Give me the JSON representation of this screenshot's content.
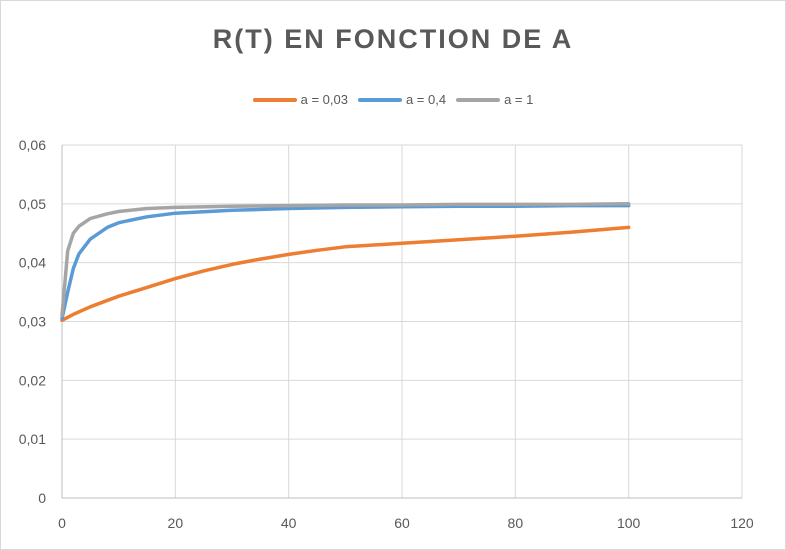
{
  "chart_data": {
    "type": "line",
    "title": "R(T) EN FONCTION DE A",
    "xlabel": "",
    "ylabel": "",
    "xlim": [
      0,
      120
    ],
    "ylim": [
      0,
      0.06
    ],
    "x_ticks": [
      "0",
      "20",
      "40",
      "60",
      "80",
      "100",
      "120"
    ],
    "y_ticks": [
      "0",
      "0,01",
      "0,02",
      "0,03",
      "0,04",
      "0,05",
      "0,06"
    ],
    "grid": true,
    "legend_position": "top",
    "series": [
      {
        "name": "a = 0,03",
        "color": "#ed7d31",
        "points": [
          [
            0,
            0.0302
          ],
          [
            2,
            0.0312
          ],
          [
            5,
            0.0325
          ],
          [
            10,
            0.0343
          ],
          [
            15,
            0.0358
          ],
          [
            20,
            0.0373
          ],
          [
            25,
            0.0386
          ],
          [
            30,
            0.0397
          ],
          [
            35,
            0.0406
          ],
          [
            40,
            0.0414
          ],
          [
            45,
            0.0421
          ],
          [
            50,
            0.0427
          ],
          [
            60,
            0.0433
          ],
          [
            70,
            0.0439
          ],
          [
            80,
            0.0445
          ],
          [
            90,
            0.0452
          ],
          [
            100,
            0.046
          ]
        ]
      },
      {
        "name": "a = 0,4",
        "color": "#5b9bd5",
        "points": [
          [
            0,
            0.0305
          ],
          [
            1,
            0.035
          ],
          [
            2,
            0.039
          ],
          [
            3,
            0.0415
          ],
          [
            5,
            0.044
          ],
          [
            8,
            0.046
          ],
          [
            10,
            0.0468
          ],
          [
            15,
            0.0478
          ],
          [
            20,
            0.0484
          ],
          [
            30,
            0.0489
          ],
          [
            40,
            0.0492
          ],
          [
            50,
            0.0494
          ],
          [
            60,
            0.0495
          ],
          [
            70,
            0.0496
          ],
          [
            80,
            0.0496
          ],
          [
            90,
            0.0497
          ],
          [
            100,
            0.0497
          ]
        ]
      },
      {
        "name": "a = 1",
        "color": "#a5a5a5",
        "points": [
          [
            0,
            0.031
          ],
          [
            1,
            0.042
          ],
          [
            2,
            0.045
          ],
          [
            3,
            0.0462
          ],
          [
            5,
            0.0475
          ],
          [
            8,
            0.0483
          ],
          [
            10,
            0.0487
          ],
          [
            15,
            0.0492
          ],
          [
            20,
            0.0494
          ],
          [
            30,
            0.0496
          ],
          [
            40,
            0.0497
          ],
          [
            50,
            0.0498
          ],
          [
            60,
            0.0498
          ],
          [
            70,
            0.0499
          ],
          [
            80,
            0.0499
          ],
          [
            90,
            0.0499
          ],
          [
            100,
            0.05
          ]
        ]
      }
    ]
  }
}
